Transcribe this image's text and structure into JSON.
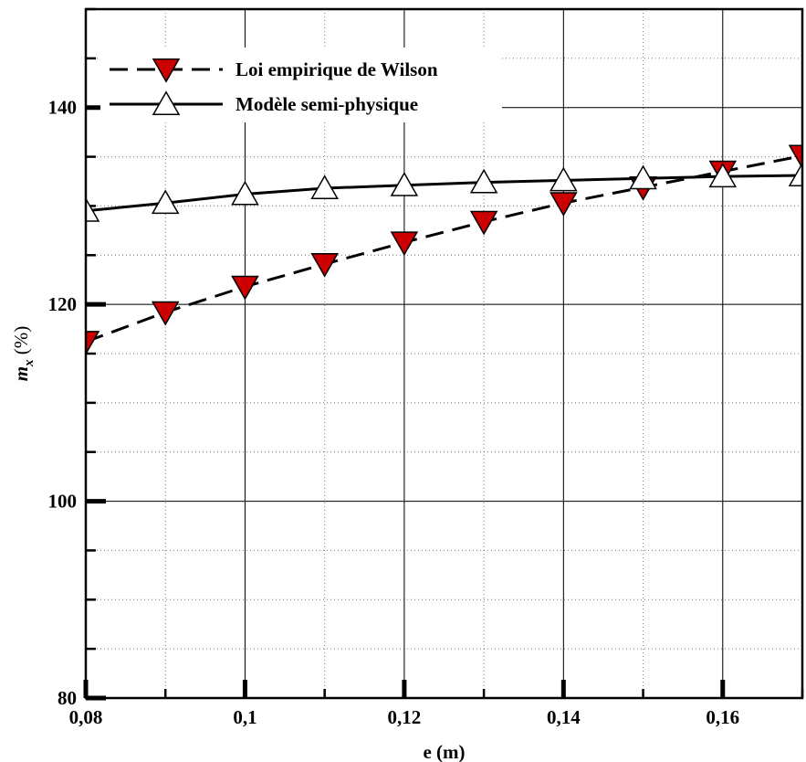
{
  "chart_data": {
    "type": "line",
    "title": "",
    "xlabel": "e (m)",
    "ylabel": {
      "base": "m",
      "subscript": "x",
      "unit": " (%)"
    },
    "xlim": [
      0.08,
      0.17
    ],
    "ylim": [
      80,
      150
    ],
    "x_ticks": [
      {
        "value": 0.08,
        "label": "0,08"
      },
      {
        "value": 0.1,
        "label": "0,1"
      },
      {
        "value": 0.12,
        "label": "0,12"
      },
      {
        "value": 0.14,
        "label": "0,14"
      },
      {
        "value": 0.16,
        "label": "0,16"
      }
    ],
    "x_minor_step": 0.01,
    "y_ticks": [
      {
        "value": 80,
        "label": "80"
      },
      {
        "value": 100,
        "label": "100"
      },
      {
        "value": 120,
        "label": "120"
      },
      {
        "value": 140,
        "label": "140"
      }
    ],
    "y_minor_step": 5,
    "grid": true,
    "legend_position": "top-left",
    "series": [
      {
        "name": "Loi empirique de Wilson",
        "line_style": "dashed",
        "marker": "triangle-down",
        "marker_color": "#cc0000",
        "x": [
          0.08,
          0.09,
          0.1,
          0.11,
          0.12,
          0.13,
          0.14,
          0.15,
          0.16,
          0.17
        ],
        "y": [
          116.2,
          119.2,
          121.8,
          124.1,
          126.3,
          128.4,
          130.3,
          131.9,
          133.5,
          135.1
        ]
      },
      {
        "name": "Modèle semi-physique",
        "line_style": "solid",
        "marker": "triangle-up",
        "marker_color": "#ffffff",
        "x": [
          0.08,
          0.09,
          0.1,
          0.11,
          0.12,
          0.13,
          0.14,
          0.15,
          0.16,
          0.17
        ],
        "y": [
          129.5,
          130.3,
          131.2,
          131.8,
          132.1,
          132.4,
          132.6,
          132.8,
          133.0,
          133.1
        ]
      }
    ]
  }
}
